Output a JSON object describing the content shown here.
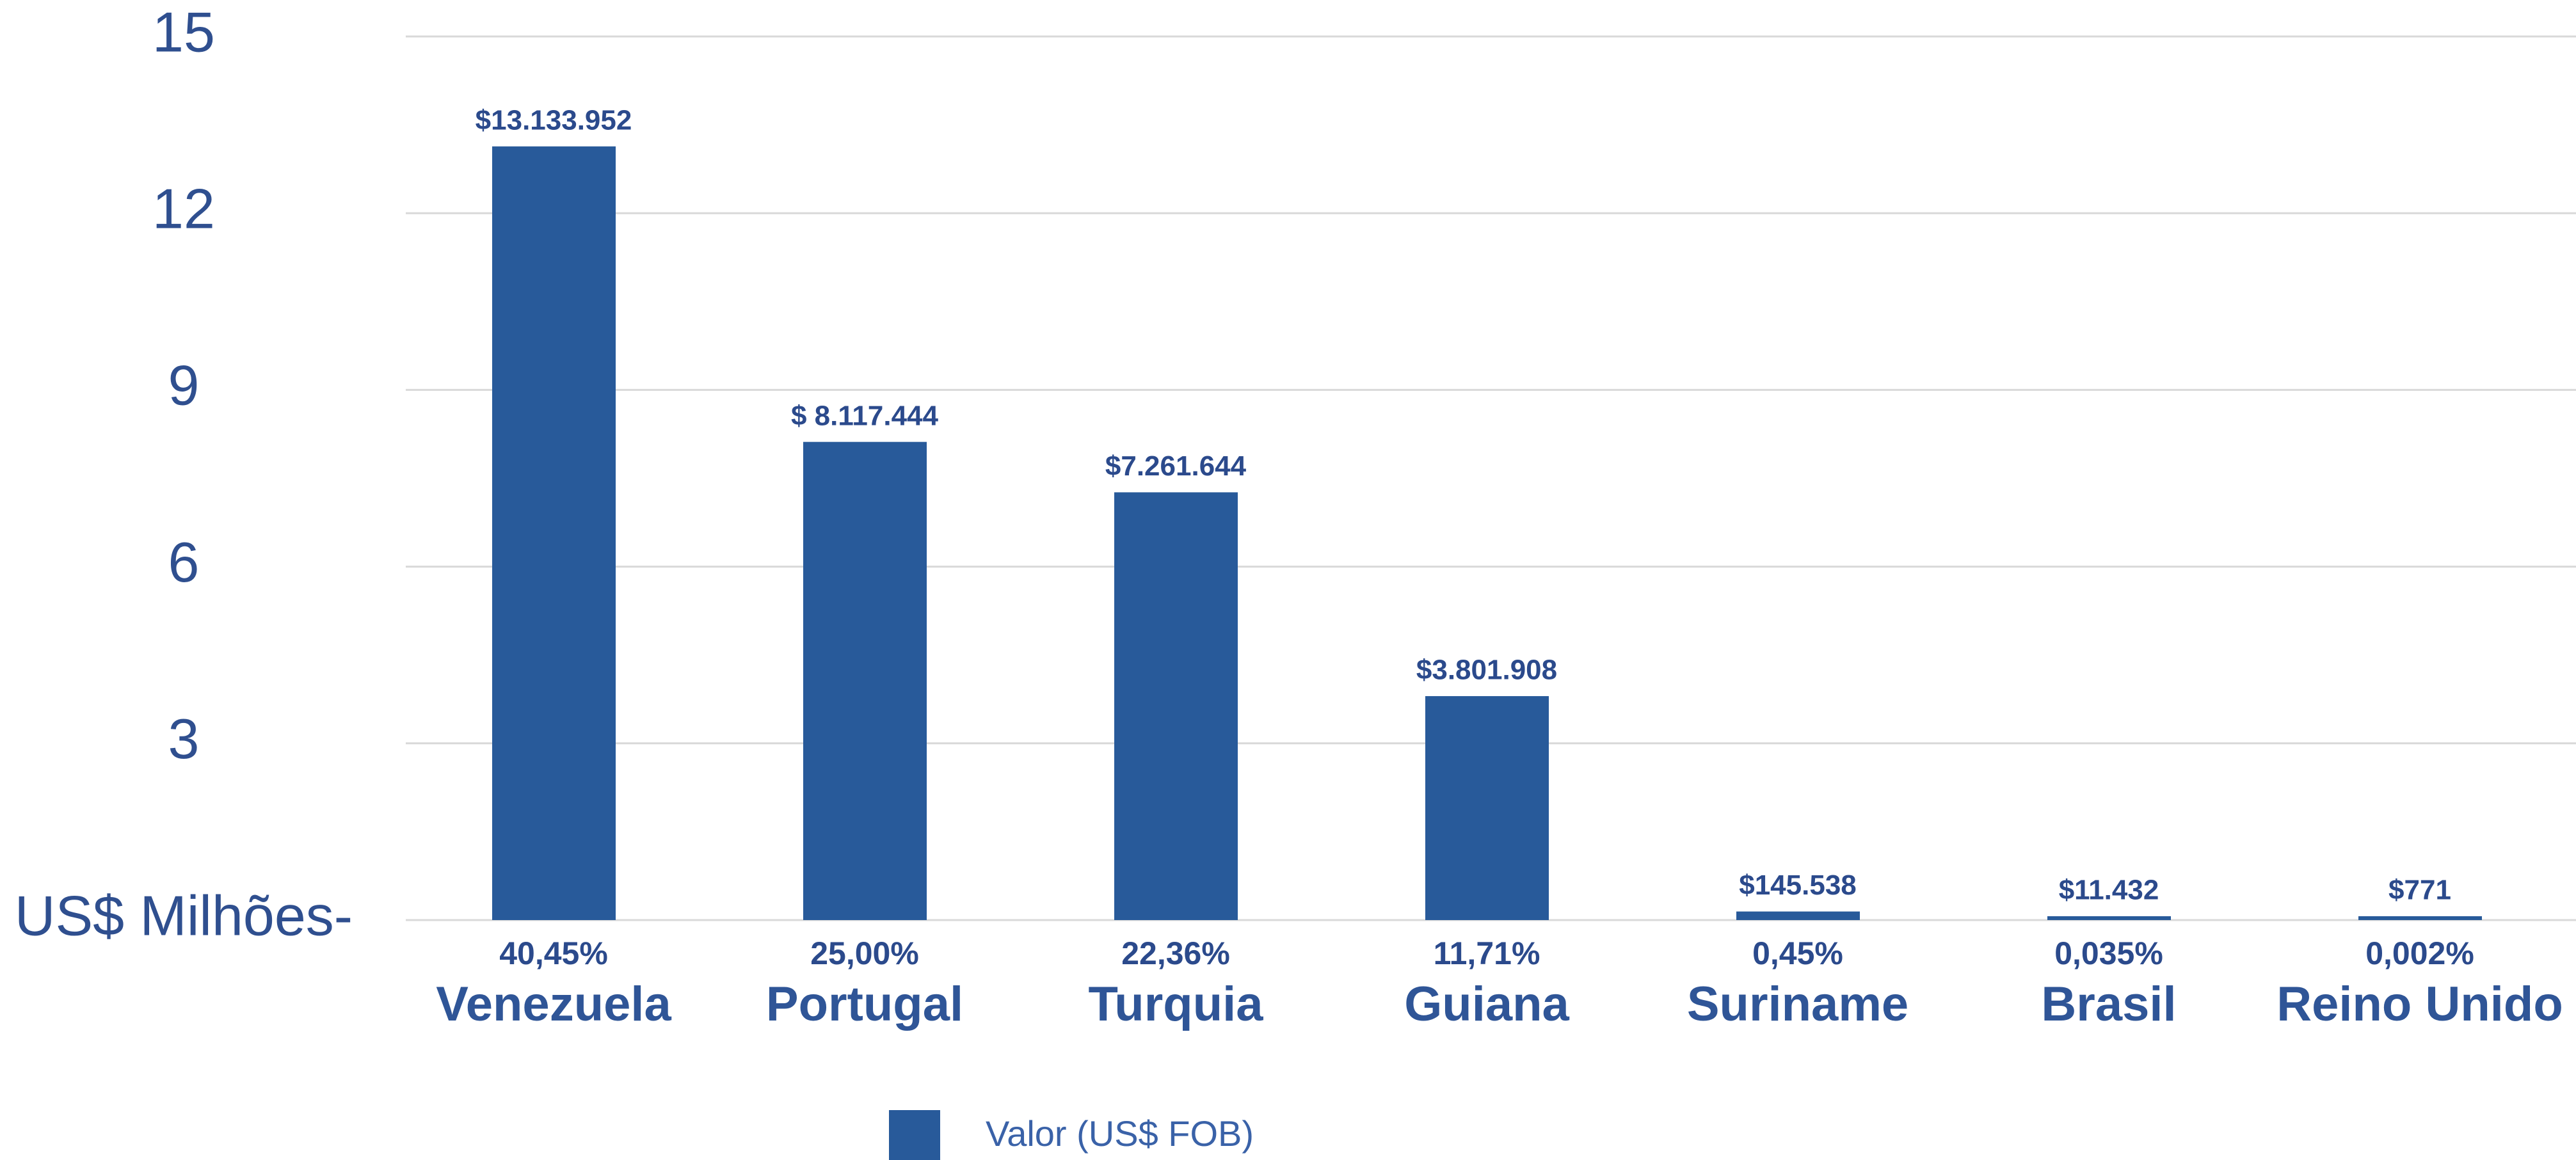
{
  "chart_data": {
    "type": "bar",
    "categories": [
      "Venezuela",
      "Portugal",
      "Turquia",
      "Guiana",
      "Suriname",
      "Brasil",
      "Reino Unido"
    ],
    "series": [
      {
        "name": "Valor (US$ FOB)",
        "color": "#285a9a",
        "values": [
          13.133952,
          8.117444,
          7.261644,
          3.801908,
          0.145538,
          0.011432,
          0.000771
        ],
        "value_labels": [
          "$13.133.952",
          "$ 8.117.444",
          "$7.261.644",
          "$3.801.908",
          "$145.538",
          "$11.432",
          "$771"
        ]
      }
    ],
    "shares": [
      40.45,
      25.0,
      22.36,
      11.71,
      0.45,
      0.035,
      0.002
    ],
    "share_labels": [
      "40,45%",
      "25,00%",
      "22,36%",
      "11,71%",
      "0,45%",
      "0,035%",
      "0,002%"
    ],
    "ylim": [
      0,
      15
    ],
    "yticks": [
      {
        "value": 0,
        "label": "US$ Milhões-"
      },
      3,
      6,
      9,
      12,
      15
    ],
    "grid": true,
    "legend": "bottom"
  }
}
